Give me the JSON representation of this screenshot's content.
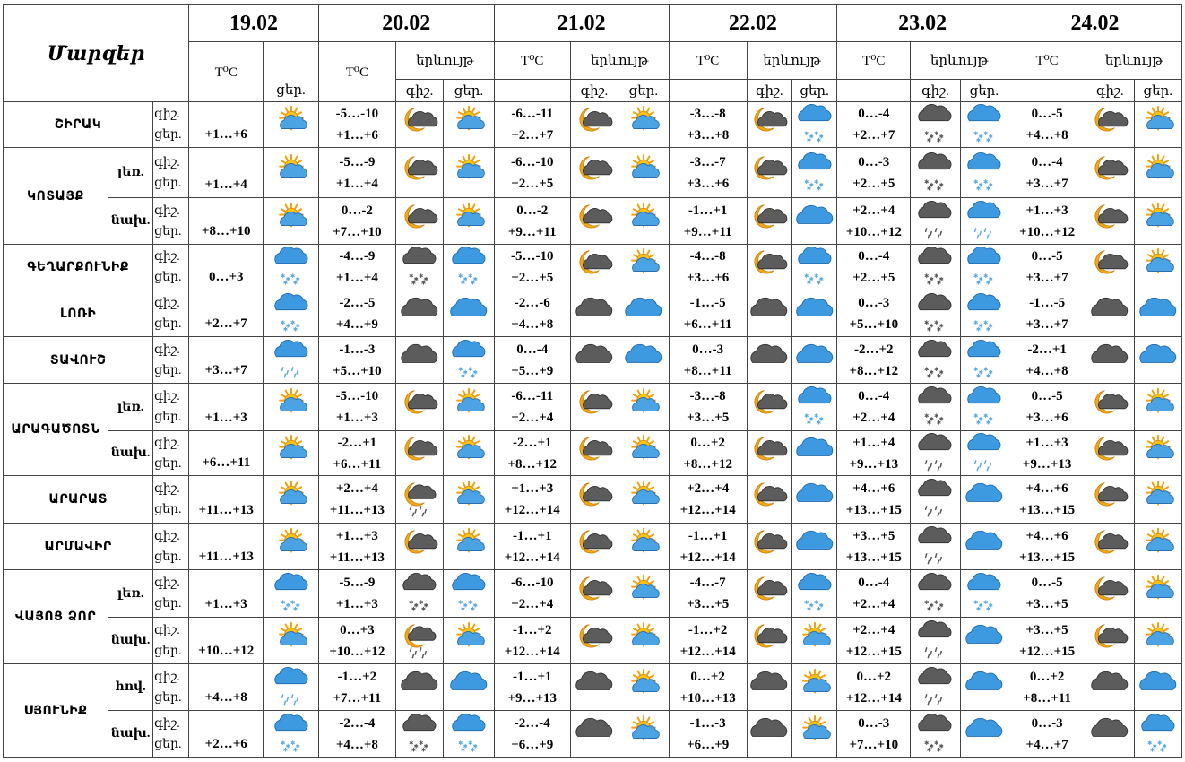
{
  "header": {
    "title": "Մարզեր",
    "dates": [
      "19.02",
      "20.02",
      "21.02",
      "22.02",
      "23.02",
      "24.02"
    ],
    "temp_label": "T⁰C",
    "phen_label": "երևույթ",
    "night": "գիշ.",
    "day": "ցեր."
  },
  "rows": [
    {
      "region": "ՇԻՐԱԿ",
      "sub": "",
      "tl": [
        "գիշ.",
        "ցեր."
      ],
      "t0": "+1…+6",
      "i0": "sun-cloud",
      "days": [
        {
          "t1": "-5…-10",
          "t2": "+1…+6",
          "n": "moon-cloud",
          "d": "sun-cloud"
        },
        {
          "t1": "-6…-11",
          "t2": "+2…+7",
          "n": "moon-cloud",
          "d": "sun-cloud"
        },
        {
          "t1": "-3…-8",
          "t2": "+3…+8",
          "n": "moon-cloud",
          "d": "snow"
        },
        {
          "t1": "0…-4",
          "t2": "+2…+7",
          "n": "dark-snow",
          "d": "snow"
        },
        {
          "t1": "0…-5",
          "t2": "+4…+8",
          "n": "moon-cloud",
          "d": "sun-cloud"
        }
      ]
    },
    {
      "region": "ԿՈՏԱՅՔ",
      "sub": "լեռ.",
      "tl": [
        "գիշ.",
        "ցեր."
      ],
      "t0": "+1…+4",
      "i0": "sun-cloud",
      "days": [
        {
          "t1": "-5…-9",
          "t2": "+1…+4",
          "n": "moon-cloud",
          "d": "sun-cloud"
        },
        {
          "t1": "-6…-10",
          "t2": "+2…+5",
          "n": "moon-cloud",
          "d": "sun-cloud"
        },
        {
          "t1": "-3…-7",
          "t2": "+3…+6",
          "n": "moon-cloud",
          "d": "snow"
        },
        {
          "t1": "0…-3",
          "t2": "+2…+5",
          "n": "dark-snow",
          "d": "snow"
        },
        {
          "t1": "0…-4",
          "t2": "+3…+7",
          "n": "moon-cloud",
          "d": "sun-cloud"
        }
      ]
    },
    {
      "region": "",
      "sub": "նախ.",
      "tl": [
        "գիշ.",
        "ցեր."
      ],
      "t0": "+8…+10",
      "i0": "sun-cloud",
      "days": [
        {
          "t1": "0…-2",
          "t2": "+7…+10",
          "n": "moon-cloud",
          "d": "sun-cloud"
        },
        {
          "t1": "0…-2",
          "t2": "+9…+11",
          "n": "moon-cloud",
          "d": "sun-cloud"
        },
        {
          "t1": "-1…+1",
          "t2": "+9…+11",
          "n": "moon-cloud",
          "d": "cloud"
        },
        {
          "t1": "+2…+4",
          "t2": "+10…+12",
          "n": "dark-rain",
          "d": "rain"
        },
        {
          "t1": "+1…+3",
          "t2": "+10…+12",
          "n": "moon-cloud",
          "d": "sun-cloud"
        }
      ]
    },
    {
      "region": "ԳԵՂԱՐՔՈՒՆԻՔ",
      "sub": "",
      "tl": [
        "գիշ.",
        "ցեր."
      ],
      "t0": "0…+3",
      "i0": "snow",
      "days": [
        {
          "t1": "-4…-9",
          "t2": "+1…+4",
          "n": "dark-snow",
          "d": "snow"
        },
        {
          "t1": "-5…-10",
          "t2": "+2…+5",
          "n": "moon-cloud",
          "d": "sun-cloud"
        },
        {
          "t1": "-4…-8",
          "t2": "+3…+6",
          "n": "moon-cloud",
          "d": "snow"
        },
        {
          "t1": "0…-4",
          "t2": "+2…+5",
          "n": "dark-snow",
          "d": "snow"
        },
        {
          "t1": "0…-5",
          "t2": "+3…+7",
          "n": "moon-cloud",
          "d": "sun-cloud"
        }
      ]
    },
    {
      "region": "ԼՈՌԻ",
      "sub": "",
      "tl": [
        "գիշ.",
        "ցեր."
      ],
      "t0": "+2…+7",
      "i0": "snow",
      "days": [
        {
          "t1": "-2…-5",
          "t2": "+4…+9",
          "n": "dark-cloud",
          "d": "cloud"
        },
        {
          "t1": "-2…-6",
          "t2": "+4…+8",
          "n": "dark-cloud",
          "d": "cloud"
        },
        {
          "t1": "-1…-5",
          "t2": "+6…+11",
          "n": "dark-cloud",
          "d": "cloud"
        },
        {
          "t1": "0…-3",
          "t2": "+5…+10",
          "n": "dark-snow",
          "d": "snow"
        },
        {
          "t1": "-1…-5",
          "t2": "+3…+7",
          "n": "dark-cloud",
          "d": "cloud"
        }
      ]
    },
    {
      "region": "ՏԱՎՈՒՇ",
      "sub": "",
      "tl": [
        "գիշ.",
        "ցեր."
      ],
      "t0": "+3…+7",
      "i0": "rain",
      "days": [
        {
          "t1": "-1…-3",
          "t2": "+5…+10",
          "n": "dark-cloud",
          "d": "snow"
        },
        {
          "t1": "0…-4",
          "t2": "+5…+9",
          "n": "dark-cloud",
          "d": "cloud"
        },
        {
          "t1": "0…-3",
          "t2": "+8…+11",
          "n": "dark-cloud",
          "d": "cloud"
        },
        {
          "t1": "-2…+2",
          "t2": "+8…+12",
          "n": "dark-snow",
          "d": "snow"
        },
        {
          "t1": "-2…+1",
          "t2": "+4…+8",
          "n": "dark-cloud",
          "d": "cloud"
        }
      ]
    },
    {
      "region": "ԱՐԱԳԱԾՈՏՆ",
      "sub": "լեռ.",
      "tl": [
        "գիշ.",
        "ցեր."
      ],
      "t0": "+1…+3",
      "i0": "sun-cloud",
      "days": [
        {
          "t1": "-5…-10",
          "t2": "+1…+3",
          "n": "moon-cloud",
          "d": "sun-cloud"
        },
        {
          "t1": "-6…-11",
          "t2": "+2…+4",
          "n": "moon-cloud",
          "d": "sun-cloud"
        },
        {
          "t1": "-3…-8",
          "t2": "+3…+5",
          "n": "moon-cloud",
          "d": "snow"
        },
        {
          "t1": "0…-4",
          "t2": "+2…+4",
          "n": "dark-snow",
          "d": "snow"
        },
        {
          "t1": "0…-5",
          "t2": "+3…+6",
          "n": "moon-cloud",
          "d": "sun-cloud"
        }
      ]
    },
    {
      "region": "",
      "sub": "նախ.",
      "tl": [
        "գիշ.",
        "ցեր."
      ],
      "t0": "+6…+11",
      "i0": "sun-cloud",
      "days": [
        {
          "t1": "-2…+1",
          "t2": "+6…+11",
          "n": "moon-cloud",
          "d": "sun-cloud"
        },
        {
          "t1": "-2…+1",
          "t2": "+8…+12",
          "n": "moon-cloud",
          "d": "sun-cloud"
        },
        {
          "t1": "0…+2",
          "t2": "+8…+12",
          "n": "moon-cloud",
          "d": "cloud"
        },
        {
          "t1": "+1…+4",
          "t2": "+9…+13",
          "n": "dark-rain",
          "d": "rain"
        },
        {
          "t1": "+1…+3",
          "t2": "+9…+13",
          "n": "moon-cloud",
          "d": "sun-cloud"
        }
      ]
    },
    {
      "region": "ԱՐԱՐԱՏ",
      "sub": "",
      "tl": [
        "գիշ.",
        "ցեր."
      ],
      "t0": "+11…+13",
      "i0": "sun-cloud",
      "days": [
        {
          "t1": "+2…+4",
          "t2": "+11…+13",
          "n": "moon-rain",
          "d": "sun-cloud"
        },
        {
          "t1": "+1…+3",
          "t2": "+12…+14",
          "n": "moon-cloud",
          "d": "sun-cloud"
        },
        {
          "t1": "+2…+4",
          "t2": "+12…+14",
          "n": "moon-cloud",
          "d": "cloud"
        },
        {
          "t1": "+4…+6",
          "t2": "+13…+15",
          "n": "dark-rain",
          "d": "cloud"
        },
        {
          "t1": "+4…+6",
          "t2": "+13…+15",
          "n": "moon-cloud",
          "d": "sun-cloud"
        }
      ]
    },
    {
      "region": "ԱՐՄԱՎԻՐ",
      "sub": "",
      "tl": [
        "գիշ.",
        "ցեր."
      ],
      "t0": "+11…+13",
      "i0": "sun-cloud",
      "days": [
        {
          "t1": "+1…+3",
          "t2": "+11…+13",
          "n": "moon-cloud",
          "d": "sun-cloud"
        },
        {
          "t1": "-1…+1",
          "t2": "+12…+14",
          "n": "moon-cloud",
          "d": "sun-cloud"
        },
        {
          "t1": "-1…+1",
          "t2": "+12…+14",
          "n": "moon-cloud",
          "d": "cloud"
        },
        {
          "t1": "+3…+5",
          "t2": "+13…+15",
          "n": "dark-rain",
          "d": "cloud"
        },
        {
          "t1": "+4…+6",
          "t2": "+13…+15",
          "n": "moon-cloud",
          "d": "sun-cloud"
        }
      ]
    },
    {
      "region": "ՎԱՅՈՑ ՁՈՐ",
      "sub": "լեռ.",
      "tl": [
        "գիշ.",
        "ցեր."
      ],
      "t0": "+1…+3",
      "i0": "snow",
      "days": [
        {
          "t1": "-5…-9",
          "t2": "+1…+3",
          "n": "dark-snow",
          "d": "snow"
        },
        {
          "t1": "-6…-10",
          "t2": "+2…+4",
          "n": "moon-cloud",
          "d": "sun-cloud"
        },
        {
          "t1": "-4…-7",
          "t2": "+3…+5",
          "n": "moon-cloud",
          "d": "snow"
        },
        {
          "t1": "0…-4",
          "t2": "+2…+4",
          "n": "dark-snow",
          "d": "snow"
        },
        {
          "t1": "0…-5",
          "t2": "+3…+5",
          "n": "moon-cloud",
          "d": "sun-cloud"
        }
      ]
    },
    {
      "region": "",
      "sub": "նախ.",
      "tl": [
        "գիշ.",
        "ցեր."
      ],
      "t0": "+10…+12",
      "i0": "sun-cloud",
      "days": [
        {
          "t1": "0…+3",
          "t2": "+10…+12",
          "n": "moon-rain",
          "d": "sun-cloud"
        },
        {
          "t1": "-1…+2",
          "t2": "+12…+14",
          "n": "moon-cloud",
          "d": "sun-cloud"
        },
        {
          "t1": "-1…+2",
          "t2": "+12…+14",
          "n": "moon-cloud",
          "d": "sun-cloud"
        },
        {
          "t1": "+2…+4",
          "t2": "+12…+15",
          "n": "dark-rain",
          "d": "cloud"
        },
        {
          "t1": "+3…+5",
          "t2": "+12…+15",
          "n": "moon-cloud",
          "d": "sun-cloud"
        }
      ]
    },
    {
      "region": "ՍՅՈՒՆԻՔ",
      "sub": "հով.",
      "tl": [
        "գիշ.",
        "ցեր."
      ],
      "t0": "+4…+8",
      "i0": "rain",
      "days": [
        {
          "t1": "-1…+2",
          "t2": "+7…+11",
          "n": "dark-cloud",
          "d": "cloud"
        },
        {
          "t1": "-1…+1",
          "t2": "+9…+13",
          "n": "dark-cloud",
          "d": "sun-cloud"
        },
        {
          "t1": "0…+2",
          "t2": "+10…+13",
          "n": "dark-cloud",
          "d": "sun-cloud"
        },
        {
          "t1": "0…+2",
          "t2": "+12…+14",
          "n": "dark-rain",
          "d": "cloud"
        },
        {
          "t1": "0…+2",
          "t2": "+8…+11",
          "n": "dark-cloud",
          "d": "cloud"
        }
      ]
    },
    {
      "region": "",
      "sub": "նախ.",
      "tl": [
        "գիշ.",
        "ցեր."
      ],
      "t0": "+2…+6",
      "i0": "snow",
      "days": [
        {
          "t1": "-2…-4",
          "t2": "+4…+8",
          "n": "dark-snow",
          "d": "snow"
        },
        {
          "t1": "-2…-4",
          "t2": "+6…+9",
          "n": "dark-cloud",
          "d": "sun-cloud"
        },
        {
          "t1": "-1…-3",
          "t2": "+6…+9",
          "n": "dark-cloud",
          "d": "sun-cloud"
        },
        {
          "t1": "0…-3",
          "t2": "+7…+10",
          "n": "dark-snow",
          "d": "cloud"
        },
        {
          "t1": "0…-3",
          "t2": "+4…+7",
          "n": "dark-cloud",
          "d": "snow"
        }
      ]
    }
  ]
}
